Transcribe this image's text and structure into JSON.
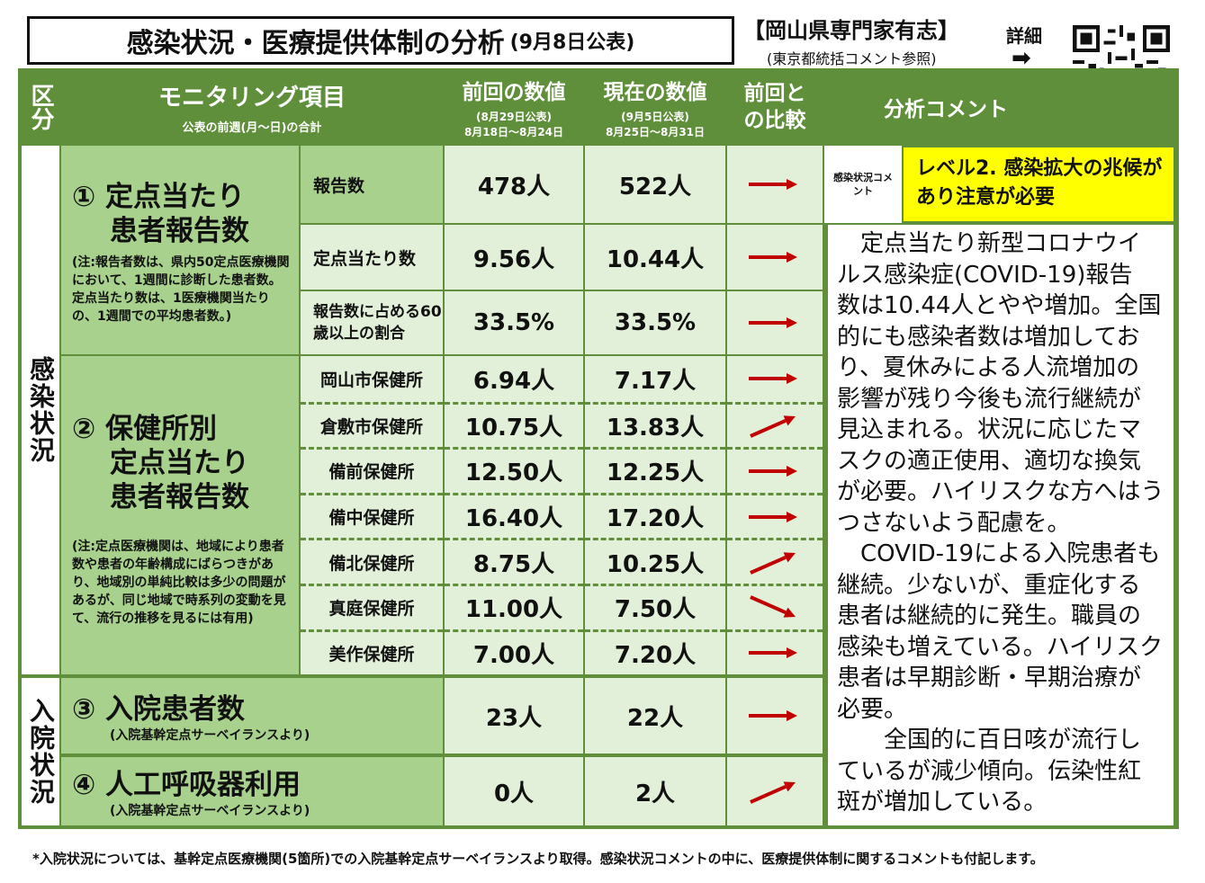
{
  "header": {
    "title": "感染状況・医療提供体制の分析",
    "title_date": "(9月8日公表)",
    "org": "【岡山県専門家有志】",
    "org_note": "(東京都統括コメント参照)",
    "detail_label": "詳細",
    "detail_arrow": "➡"
  },
  "columns": {
    "category": "区分",
    "item": "モニタリング項目",
    "item_sub": "公表の前週(月～日)の合計",
    "prev": "前回の数値",
    "prev_pub": "(8月29日公表)",
    "prev_range": "8月18日～8月24日",
    "curr": "現在の数値",
    "curr_pub": "(9月5日公表)",
    "curr_range": "8月25日～8月31日",
    "compare": "前回との比較",
    "comment": "分析コメント"
  },
  "sections": {
    "infection": "感染状況",
    "hospital": "入院状況"
  },
  "item1": {
    "title_a": "① 定点当たり",
    "title_b": "患者報告数",
    "note": "(注:報告者数は、県内50定点医療機関において、1週間に診断した患者数。定点当たり数は、1医療機関当たりの、1週間での平均患者数。)",
    "rows": [
      {
        "label": "報告数",
        "prev": "478人",
        "curr": "522人",
        "trend": "flat"
      },
      {
        "label": "定点当たり数",
        "prev": "9.56人",
        "curr": "10.44人",
        "trend": "flat"
      },
      {
        "label": "報告数に占める60歳以上の割合",
        "prev": "33.5%",
        "curr": "33.5%",
        "trend": "flat"
      }
    ]
  },
  "item2": {
    "title_a": "② 保健所別",
    "title_b": "定点当たり",
    "title_c": "患者報告数",
    "note": "(注:定点医療機関は、地域により患者数や患者の年齢構成にばらつきがあり、地域別の単純比較は多少の問題があるが、同じ地域で時系列の変動を見て、流行の推移を見るには有用)",
    "rows": [
      {
        "label": "岡山市保健所",
        "prev": "6.94人",
        "curr": "7.17人",
        "trend": "flat"
      },
      {
        "label": "倉敷市保健所",
        "prev": "10.75人",
        "curr": "13.83人",
        "trend": "up"
      },
      {
        "label": "備前保健所",
        "prev": "12.50人",
        "curr": "12.25人",
        "trend": "flat"
      },
      {
        "label": "備中保健所",
        "prev": "16.40人",
        "curr": "17.20人",
        "trend": "flat"
      },
      {
        "label": "備北保健所",
        "prev": "8.75人",
        "curr": "10.25人",
        "trend": "up"
      },
      {
        "label": "真庭保健所",
        "prev": "11.00人",
        "curr": "7.50人",
        "trend": "down"
      },
      {
        "label": "美作保健所",
        "prev": "7.00人",
        "curr": "7.20人",
        "trend": "flat"
      }
    ]
  },
  "item3": {
    "title": "③ 入院患者数",
    "note": "(入院基幹定点サーベイランスより)",
    "prev": "23人",
    "curr": "22人",
    "trend": "flat"
  },
  "item4": {
    "title": "④ 人工呼吸器利用",
    "note": "(入院基幹定点サーベイランスより)",
    "prev": "0人",
    "curr": "2人",
    "trend": "up"
  },
  "analysis": {
    "tag": "感染状況コメント",
    "level": "レベル2. 感染拡大の兆候があり注意が必要",
    "lines": [
      "　定点当たり新型コロナウイ",
      "ルス感染症(COVID-19)報告",
      "数は10.44人とやや増加。全国",
      "的にも感染者数は増加してお",
      "り、夏休みによる人流増加の",
      "影響が残り今後も流行継続が",
      "見込まれる。状況に応じたマ",
      "スクの適正使用、適切な換気",
      "が必要。ハイリスクな方へはう",
      "つさないよう配慮を。",
      "　COVID-19による入院患者も",
      "継続。少ないが、重症化する",
      "患者は継続的に発生。職員の",
      "感染も増えている。ハイリスク",
      "患者は早期診断・早期治療が",
      "必要。",
      "　　全国的に百日咳が流行し",
      "ているが減少傾向。伝染性紅",
      "斑が増加している。"
    ]
  },
  "footer": "*入院状況については、基幹定点医療機関(5箇所)での入院基幹定点サーベイランスより取得。感染状況コメントの中に、医療提供体制に関するコメントも付記します。",
  "colors": {
    "header_green": "#5f8f3a",
    "light_green": "#a9d18e",
    "pale_green": "#e2efd9",
    "level_yellow": "#ffff00",
    "arrow_red": "#c00000"
  }
}
